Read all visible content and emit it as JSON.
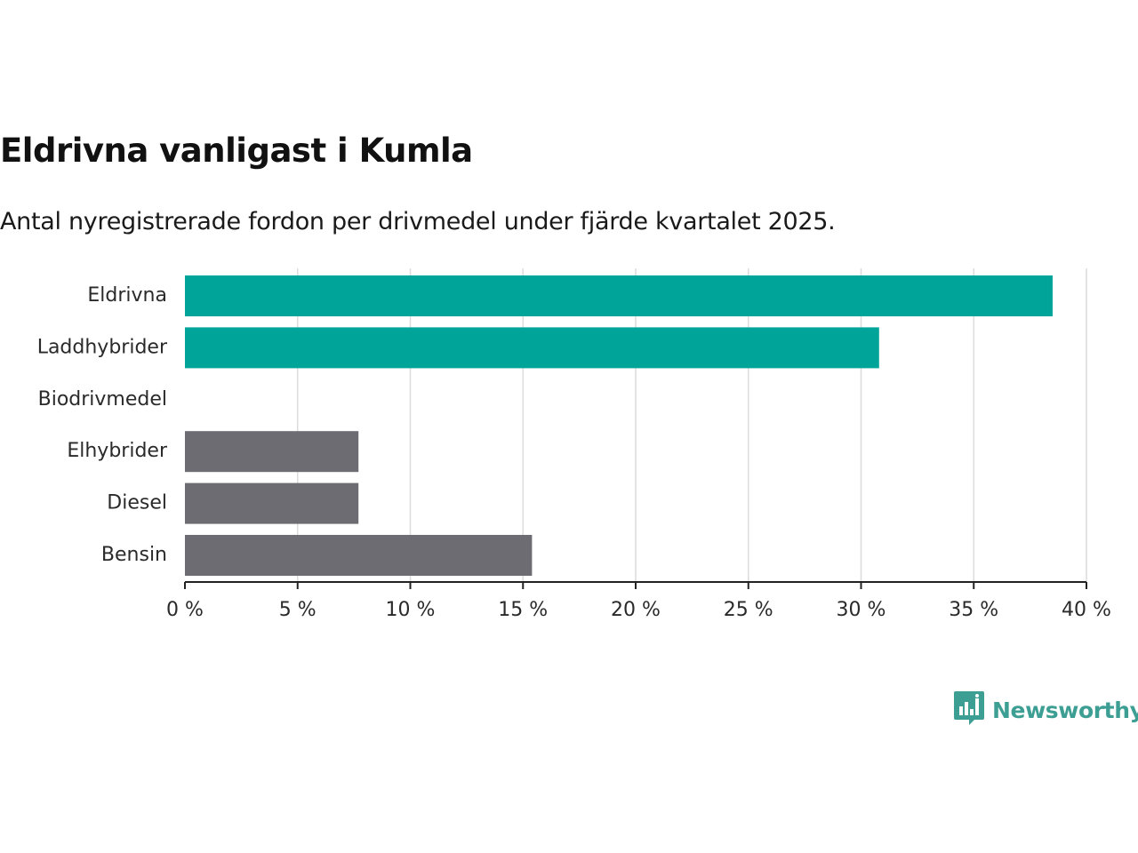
{
  "chart_data": {
    "type": "bar",
    "orientation": "horizontal",
    "title": "Eldrivna vanligast i Kumla",
    "subtitle": "Antal nyregistrerade fordon per drivmedel under fjärde kvartalet 2025.",
    "categories": [
      "Eldrivna",
      "Laddhybrider",
      "Biodrivmedel",
      "Elhybrider",
      "Diesel",
      "Bensin"
    ],
    "values": [
      38.5,
      30.8,
      0,
      7.7,
      7.7,
      15.4
    ],
    "value_unit": "%",
    "colors": [
      "#00a499",
      "#00a499",
      "#6d6c72",
      "#6d6c72",
      "#6d6c72",
      "#6d6c72"
    ],
    "xlim": [
      0,
      40
    ],
    "xticks": [
      0,
      5,
      10,
      15,
      20,
      25,
      30,
      35,
      40
    ],
    "xtick_labels": [
      "0 %",
      "5 %",
      "10 %",
      "15 %",
      "20 %",
      "25 %",
      "30 %",
      "35 %",
      "40 %"
    ],
    "grid": true,
    "legend": "none"
  },
  "brand": {
    "name": "Newsworthy",
    "color": "#3d9e94",
    "icon": "newsworthy-chart-bubble-icon"
  }
}
